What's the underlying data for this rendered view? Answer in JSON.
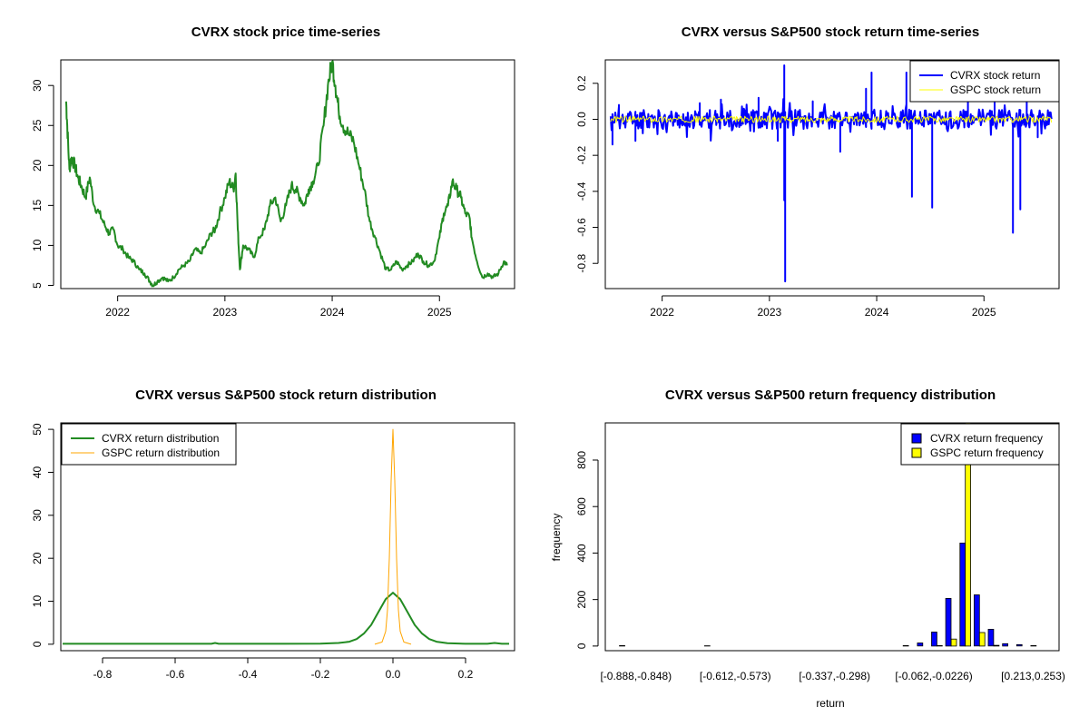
{
  "panels": [
    {
      "title": "CVRX stock price time-series"
    },
    {
      "title": "CVRX versus S&P500 stock return time-series"
    },
    {
      "title": "CVRX versus S&P500 stock return distribution"
    },
    {
      "title": "CVRX versus S&P500 return frequency distribution"
    }
  ],
  "chart_data": [
    {
      "type": "line",
      "title": "CVRX stock price time-series",
      "xlabel": "",
      "ylabel": "",
      "xlim": [
        2021.47,
        2025.7
      ],
      "ylim": [
        4.6,
        33.2
      ],
      "xticks": [
        2022,
        2023,
        2024,
        2025
      ],
      "xtick_labels": [
        "2022",
        "2023",
        "2024",
        "2025"
      ],
      "yticks": [
        5,
        10,
        15,
        20,
        25,
        30
      ],
      "ytick_labels": [
        "5",
        "10",
        "15",
        "20",
        "25",
        "30"
      ],
      "grid": false,
      "colors": {
        "price": "#228B22"
      },
      "series": [
        {
          "x": [
            2021.52,
            2021.53,
            2021.55,
            2021.57,
            2021.6,
            2021.63,
            2021.66,
            2021.7,
            2021.74,
            2021.78,
            2021.83,
            2021.88,
            2021.92,
            2021.96,
            2022.0,
            2022.05,
            2022.1,
            2022.15,
            2022.2,
            2022.25,
            2022.3,
            2022.33,
            2022.37,
            2022.42,
            2022.47,
            2022.52,
            2022.57,
            2022.62,
            2022.67,
            2022.72,
            2022.77,
            2022.82,
            2022.87,
            2022.91,
            2022.95,
            2023.0,
            2023.04,
            2023.08,
            2023.1,
            2023.12,
            2023.14,
            2023.17,
            2023.22,
            2023.27,
            2023.32,
            2023.37,
            2023.42,
            2023.47,
            2023.52,
            2023.57,
            2023.62,
            2023.66,
            2023.7,
            2023.74,
            2023.78,
            2023.82,
            2023.87,
            2023.92,
            2023.96,
            2024.0,
            2024.03,
            2024.06,
            2024.1,
            2024.15,
            2024.2,
            2024.25,
            2024.3,
            2024.35,
            2024.4,
            2024.45,
            2024.5,
            2024.55,
            2024.6,
            2024.65,
            2024.7,
            2024.75,
            2024.8,
            2024.85,
            2024.9,
            2024.95,
            2025.0,
            2025.04,
            2025.08,
            2025.12,
            2025.16,
            2025.2,
            2025.24,
            2025.28,
            2025.3,
            2025.35,
            2025.4,
            2025.45,
            2025.5,
            2025.55,
            2025.6,
            2025.63
          ],
          "y": [
            28,
            25,
            19.5,
            21,
            20,
            18.5,
            17.5,
            16,
            18.5,
            15,
            14,
            12.5,
            11.5,
            12,
            10,
            9.5,
            8.5,
            8,
            7,
            6.5,
            5.5,
            5,
            5.5,
            6,
            5.5,
            6,
            7,
            7.5,
            8,
            9.5,
            9,
            10,
            11.5,
            12,
            14,
            16,
            18,
            17,
            19,
            12,
            7,
            10,
            9.5,
            8.5,
            11,
            12,
            15,
            16,
            13,
            15,
            17.5,
            17,
            16,
            15,
            17,
            18,
            20,
            25,
            30,
            33,
            30,
            27,
            25,
            24,
            23,
            20,
            17,
            13,
            11,
            9,
            7,
            7,
            8,
            7,
            7.5,
            8,
            9,
            8,
            7.5,
            8,
            11,
            14,
            15,
            18,
            17,
            16,
            14,
            13.5,
            11,
            8,
            6,
            6.5,
            6,
            6.5,
            8,
            7.5
          ]
        }
      ]
    },
    {
      "type": "line",
      "title": "CVRX versus S&P500 stock return time-series",
      "xlabel": "",
      "ylabel": "",
      "xlim": [
        2021.47,
        2025.7
      ],
      "ylim": [
        -0.94,
        0.33
      ],
      "xticks": [
        2022,
        2023,
        2024,
        2025
      ],
      "xtick_labels": [
        "2022",
        "2023",
        "2024",
        "2025"
      ],
      "yticks": [
        0.2,
        0.0,
        -0.2,
        -0.4,
        -0.6,
        -0.8
      ],
      "ytick_labels": [
        "0.2",
        "0.0",
        "-0.2",
        "-0.4",
        "-0.6",
        "-0.8"
      ],
      "grid": false,
      "legend": "top-right",
      "colors": {
        "cvrx": "#0000FF",
        "gspc": "#FFFF00"
      },
      "series": [
        {
          "name": "CVRX stock return"
        },
        {
          "name": "GSPC stock return"
        }
      ],
      "cvrx_spikes": [
        {
          "x": 2021.54,
          "y": -0.14
        },
        {
          "x": 2021.6,
          "y": 0.08
        },
        {
          "x": 2021.75,
          "y": -0.12
        },
        {
          "x": 2022.35,
          "y": 0.09
        },
        {
          "x": 2022.55,
          "y": 0.11
        },
        {
          "x": 2022.9,
          "y": 0.12
        },
        {
          "x": 2023.08,
          "y": -0.12
        },
        {
          "x": 2023.14,
          "y": 0.3
        },
        {
          "x": 2023.14,
          "y": -0.45
        },
        {
          "x": 2023.15,
          "y": -0.9
        },
        {
          "x": 2023.4,
          "y": 0.1
        },
        {
          "x": 2023.66,
          "y": -0.18
        },
        {
          "x": 2023.9,
          "y": 0.17
        },
        {
          "x": 2023.95,
          "y": 0.26
        },
        {
          "x": 2024.28,
          "y": 0.26
        },
        {
          "x": 2024.33,
          "y": -0.43
        },
        {
          "x": 2024.52,
          "y": -0.49
        },
        {
          "x": 2024.85,
          "y": 0.12
        },
        {
          "x": 2025.1,
          "y": 0.14
        },
        {
          "x": 2025.27,
          "y": -0.63
        },
        {
          "x": 2025.34,
          "y": -0.5
        },
        {
          "x": 2025.4,
          "y": 0.1
        },
        {
          "x": 2025.5,
          "y": -0.1
        }
      ]
    },
    {
      "type": "line",
      "title": "CVRX versus S&P500 stock return distribution",
      "xlabel": "",
      "ylabel": "",
      "xlim": [
        -0.915,
        0.335
      ],
      "ylim": [
        -1.5,
        51.5
      ],
      "xticks": [
        -0.8,
        -0.6,
        -0.4,
        -0.2,
        0.0,
        0.2
      ],
      "xtick_labels": [
        "-0.8",
        "-0.6",
        "-0.4",
        "-0.2",
        "0.0",
        "0.2"
      ],
      "yticks": [
        0,
        10,
        20,
        30,
        40,
        50
      ],
      "ytick_labels": [
        "0",
        "10",
        "20",
        "30",
        "40",
        "50"
      ],
      "grid": false,
      "legend": "top-left",
      "colors": {
        "cvrx": "#228B22",
        "gspc": "#FFA500"
      },
      "series": [
        {
          "name": "CVRX return distribution",
          "x": [
            -0.91,
            -0.5,
            -0.49,
            -0.48,
            -0.3,
            -0.2,
            -0.15,
            -0.12,
            -0.1,
            -0.08,
            -0.06,
            -0.04,
            -0.02,
            0.0,
            0.02,
            0.04,
            0.06,
            0.08,
            0.1,
            0.12,
            0.15,
            0.2,
            0.26,
            0.28,
            0.3,
            0.32
          ],
          "y": [
            0.1,
            0.1,
            0.3,
            0.1,
            0.1,
            0.15,
            0.3,
            0.6,
            1.2,
            2.5,
            4.5,
            7.5,
            10.5,
            12,
            10.5,
            7.5,
            4.5,
            2.5,
            1.2,
            0.6,
            0.25,
            0.1,
            0.1,
            0.3,
            0.1,
            0.1
          ]
        },
        {
          "name": "GSPC return distribution",
          "x": [
            -0.05,
            -0.03,
            -0.02,
            -0.015,
            -0.01,
            -0.005,
            0.0,
            0.005,
            0.01,
            0.015,
            0.02,
            0.03,
            0.05
          ],
          "y": [
            0,
            0.5,
            3,
            8,
            20,
            38,
            50,
            38,
            20,
            8,
            3,
            0.5,
            0
          ]
        }
      ]
    },
    {
      "type": "bar",
      "title": "CVRX versus S&P500 return frequency distribution",
      "xlabel": "return",
      "ylabel": "frequency",
      "ylim": [
        -20,
        960
      ],
      "yticks": [
        0,
        200,
        400,
        600,
        800
      ],
      "ytick_labels": [
        "0",
        "200",
        "400",
        "600",
        "800"
      ],
      "grid": false,
      "legend": "top-right",
      "colors": {
        "cvrx": "#0000FF",
        "gspc": "#FFFF00"
      },
      "visible_category_labels": [
        "[-0.888,-0.848)",
        "[-0.612,-0.573)",
        "[-0.337,-0.298)",
        "[-0.062,-0.0226)",
        "[0.213,0.253)"
      ],
      "category_count": 30,
      "series": [
        {
          "name": "CVRX return frequency",
          "values": [
            2,
            0,
            0,
            0,
            0,
            0,
            1,
            0,
            0,
            0,
            0,
            0,
            0,
            0,
            0,
            0,
            0,
            0,
            0,
            0,
            2,
            13,
            60,
            205,
            443,
            220,
            72,
            10,
            6,
            2
          ]
        },
        {
          "name": "GSPC return frequency",
          "values": [
            0,
            0,
            0,
            0,
            0,
            0,
            0,
            0,
            0,
            0,
            0,
            0,
            0,
            0,
            0,
            0,
            0,
            0,
            0,
            0,
            0,
            0,
            2,
            30,
            960,
            58,
            3,
            0,
            0,
            0
          ]
        }
      ]
    }
  ]
}
